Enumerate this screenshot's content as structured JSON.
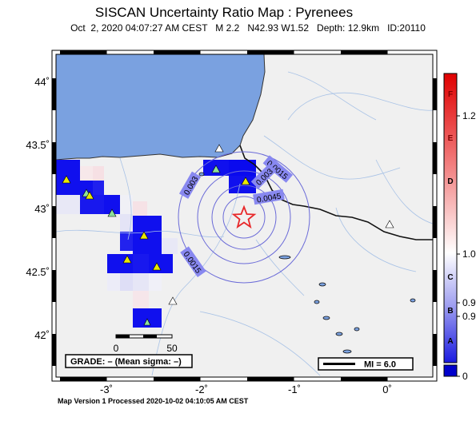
{
  "map": {
    "title": "SISCAN Uncertainty Ratio Map : Pyrenees",
    "subtitle": "Oct  2, 2020 04:07:27 AM CEST   M 2.2   N42.93 W1.52   Depth: 12.9km   ID:20110",
    "footer": "Map Version 1 Processed 2020-10-02 04:10:05 AM CEST",
    "longitude_ticks": [
      "-3˚",
      "-2˚",
      "-1˚",
      "0˚"
    ],
    "latitude_ticks": [
      "44˚",
      "43.5˚",
      "43˚",
      "42.5˚",
      "42˚"
    ],
    "grade_label": "GRADE: – (Mean sigma: –)",
    "mi_label": "MI = 6.0",
    "scale_bar": {
      "start": "0",
      "end": "50"
    },
    "contour_labels": [
      "0.0015",
      "0.003",
      "0.003",
      "0.0045",
      "0.0015"
    ],
    "epicenter": {
      "lat": 42.93,
      "lon": -1.52,
      "marker": "star-icon",
      "color": "#e8282a"
    }
  },
  "colorbar": {
    "letters": [
      "F",
      "E",
      "D",
      "C",
      "B",
      "A"
    ],
    "values": [
      "1.2",
      "1.0",
      "0.9",
      "0.9",
      "0"
    ],
    "colors": {
      "top": "#e00000",
      "middle": "#ffffff",
      "bottom": "#0000cc"
    }
  },
  "colors": {
    "sea": "#7aa1e0",
    "land": "#f0f0f0",
    "cell_blue": "#1010ee",
    "contour": "#6b6bd8",
    "station_triangle": "#e8e800"
  }
}
